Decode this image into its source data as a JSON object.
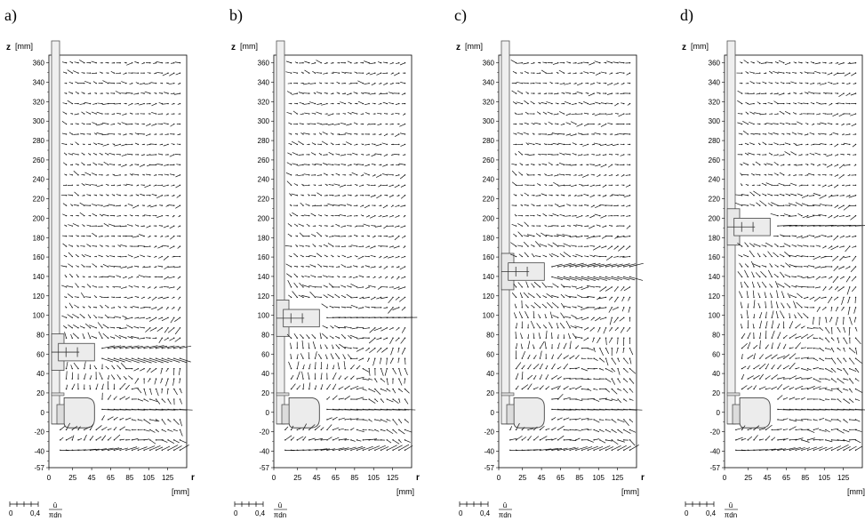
{
  "panels": [
    {
      "label": "a)",
      "impeller_z": 62
    },
    {
      "label": "b)",
      "impeller_z": 97
    },
    {
      "label": "c)",
      "impeller_z": 145
    },
    {
      "label": "d)",
      "impeller_z": 191
    }
  ],
  "axes": {
    "z_symbol": "z",
    "z_unit": "[mm]",
    "r_symbol": "r",
    "r_unit": "[mm]",
    "z_ticks": [
      "360",
      "340",
      "320",
      "300",
      "280",
      "260",
      "240",
      "220",
      "200",
      "180",
      "160",
      "140",
      "120",
      "100",
      "80",
      "60",
      "40",
      "20",
      "0",
      "-20",
      "-40",
      "-57"
    ],
    "r_ticks": [
      "0",
      "25",
      "45",
      "65",
      "85",
      "105",
      "125"
    ]
  },
  "scale": {
    "zero_label": "0",
    "ref_label": "0,4",
    "formula_num": "ū",
    "formula_den": "πdn"
  }
}
